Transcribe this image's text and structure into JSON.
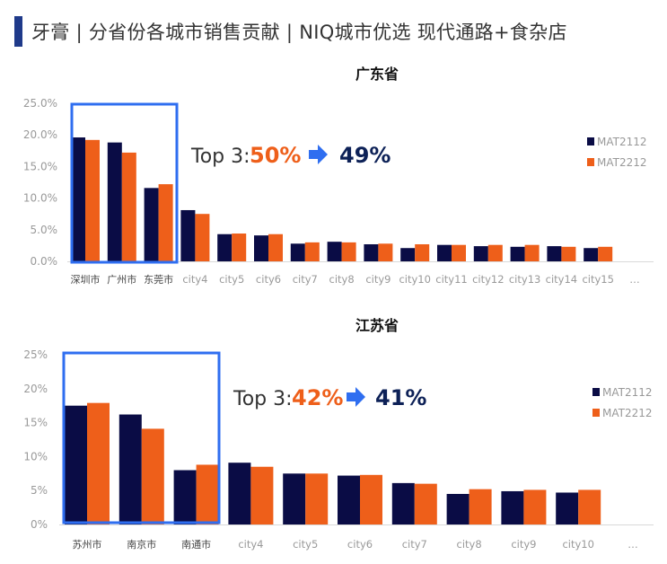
{
  "header": {
    "title": "牙膏 | 分省份各城市销售贡献 | NIQ城市优选 现代通路+食杂店"
  },
  "colors": {
    "MAT2112": "#0a0c45",
    "MAT2212": "#ee5f1a",
    "highlight": "#2f6ef0",
    "accent": "#1f3a8a"
  },
  "chart_data": [
    {
      "type": "bar",
      "title": "广东省",
      "ylim": [
        0,
        25
      ],
      "yticks": [
        "0.0%",
        "5.0%",
        "10.0%",
        "15.0%",
        "20.0%",
        "25.0%"
      ],
      "categories": [
        "深圳市",
        "广州市",
        "东莞市",
        "city4",
        "city5",
        "city6",
        "city7",
        "city8",
        "city9",
        "city10",
        "city11",
        "city12",
        "city13",
        "city14",
        "city15",
        "…"
      ],
      "series": [
        {
          "name": "MAT2112",
          "values": [
            19.6,
            18.8,
            11.6,
            8.1,
            4.3,
            4.1,
            2.8,
            3.1,
            2.7,
            2.1,
            2.6,
            2.4,
            2.3,
            2.4,
            2.1,
            null
          ]
        },
        {
          "name": "MAT2212",
          "values": [
            19.2,
            17.2,
            12.2,
            7.5,
            4.4,
            4.3,
            3.0,
            3.0,
            2.8,
            2.7,
            2.6,
            2.6,
            2.6,
            2.3,
            2.3,
            null
          ]
        }
      ],
      "annotation": {
        "label": "Top 3:",
        "from": "50%",
        "to": "49%"
      },
      "highlight_count": 3,
      "legend": "right"
    },
    {
      "type": "bar",
      "title": "江苏省",
      "ylim": [
        0,
        25
      ],
      "yticks": [
        "0%",
        "5%",
        "10%",
        "15%",
        "20%",
        "25%"
      ],
      "categories": [
        "苏州市",
        "南京市",
        "南通市",
        "city4",
        "city5",
        "city6",
        "city7",
        "city8",
        "city9",
        "city10",
        "…"
      ],
      "series": [
        {
          "name": "MAT2112",
          "values": [
            17.5,
            16.2,
            8.0,
            9.1,
            7.5,
            7.2,
            6.1,
            4.5,
            4.9,
            4.7,
            null
          ]
        },
        {
          "name": "MAT2212",
          "values": [
            17.9,
            14.1,
            8.8,
            8.5,
            7.5,
            7.3,
            6.0,
            5.2,
            5.1,
            5.1,
            null
          ]
        }
      ],
      "annotation": {
        "label": "Top 3:",
        "from": "42%",
        "to": "41%"
      },
      "highlight_count": 3,
      "legend": "right"
    }
  ]
}
